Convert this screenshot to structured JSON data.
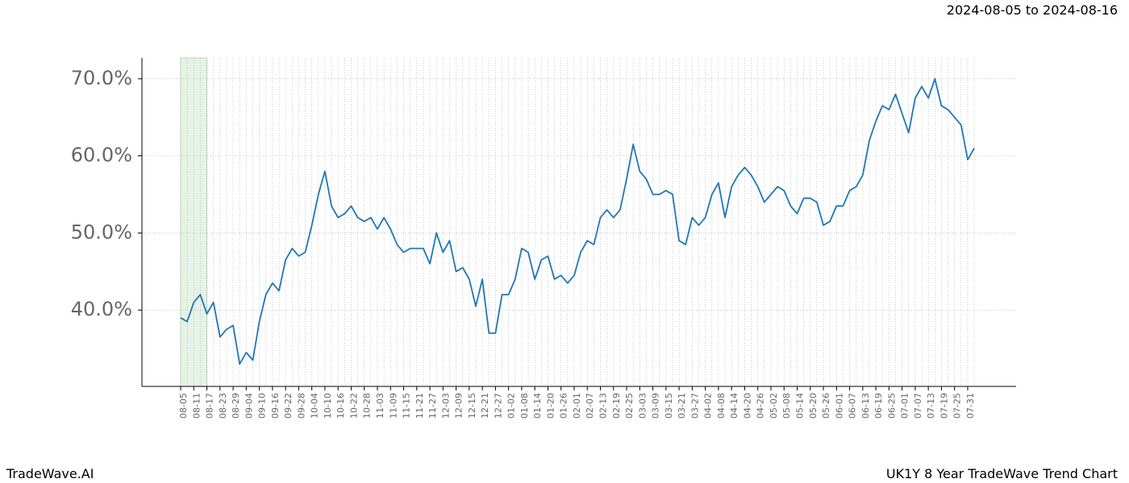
{
  "chart_data": {
    "type": "line",
    "title": "UK1Y 8 Year TradeWave Trend Chart",
    "subtitle": "2024-08-05 to 2024-08-16",
    "brand": "TradeWave.AI",
    "categories": [
      "08-05",
      null,
      "08-11",
      null,
      "08-17",
      null,
      "08-23",
      null,
      "08-29",
      null,
      "09-04",
      null,
      "09-10",
      null,
      "09-16",
      null,
      "09-22",
      null,
      "09-28",
      null,
      "10-04",
      null,
      "10-10",
      null,
      "10-16",
      null,
      "10-22",
      null,
      "10-28",
      null,
      "11-03",
      null,
      "11-09",
      null,
      "11-15",
      null,
      "11-21",
      null,
      "11-27",
      null,
      "12-03",
      null,
      "12-09",
      null,
      "12-15",
      null,
      "12-21",
      null,
      "12-27",
      null,
      "01-02",
      null,
      "01-08",
      null,
      "01-14",
      null,
      "01-20",
      null,
      "01-26",
      null,
      "02-01",
      null,
      "02-07",
      null,
      "02-13",
      null,
      "02-19",
      null,
      "02-25",
      null,
      "03-03",
      null,
      "03-09",
      null,
      "03-15",
      null,
      "03-21",
      null,
      "03-27",
      null,
      "04-02",
      null,
      "04-08",
      null,
      "04-14",
      null,
      "04-20",
      null,
      "04-26",
      null,
      "05-02",
      null,
      "05-08",
      null,
      "05-14",
      null,
      "05-20",
      null,
      "05-26",
      null,
      "06-01",
      null,
      "06-07",
      null,
      "06-13",
      null,
      "06-19",
      null,
      "06-25",
      null,
      "07-01",
      null,
      "07-07",
      null,
      "07-13",
      null,
      "07-19",
      null,
      "07-25",
      null,
      "07-31",
      null
    ],
    "series": [
      {
        "color": "#1f77b4",
        "values": [
          39.0,
          38.5,
          41.0,
          42.0,
          39.5,
          41.0,
          36.5,
          37.5,
          38.0,
          33.0,
          34.5,
          33.5,
          38.5,
          42.0,
          43.5,
          42.5,
          46.5,
          48.0,
          47.0,
          47.5,
          51.0,
          55.0,
          58.0,
          53.5,
          52.0,
          52.5,
          53.5,
          52.0,
          51.5,
          52.0,
          50.5,
          52.0,
          50.5,
          48.5,
          47.5,
          48.0,
          48.0,
          48.0,
          46.0,
          50.0,
          47.5,
          49.0,
          45.0,
          45.5,
          44.0,
          40.5,
          44.0,
          37.0,
          37.0,
          42.0,
          42.0,
          44.0,
          48.0,
          47.5,
          44.0,
          46.5,
          47.0,
          44.0,
          44.5,
          43.5,
          44.5,
          47.5,
          49.0,
          48.5,
          52.0,
          53.0,
          52.0,
          53.0,
          57.0,
          61.5,
          58.0,
          57.0,
          55.0,
          55.0,
          55.5,
          55.0,
          49.0,
          48.5,
          52.0,
          51.0,
          52.0,
          55.0,
          56.5,
          52.0,
          56.0,
          57.5,
          58.5,
          57.5,
          56.0,
          54.0,
          55.0,
          56.0,
          55.5,
          53.5,
          52.5,
          54.5,
          54.5,
          54.0,
          51.0,
          51.5,
          53.5,
          53.5,
          55.5,
          56.0,
          57.5,
          62.0,
          64.5,
          66.5,
          66.0,
          68.0,
          65.5,
          63.0,
          67.5,
          69.0,
          67.5,
          70.0,
          66.5,
          66.0,
          65.0,
          64.0,
          59.5,
          61.0
        ]
      }
    ],
    "ylim": [
      30.1,
      72.7
    ],
    "yticks": [
      {
        "value": 40,
        "label": "40.0%"
      },
      {
        "value": 50,
        "label": "50.0%"
      },
      {
        "value": 60,
        "label": "60.0%"
      },
      {
        "value": 70,
        "label": "70.0%"
      }
    ],
    "grid": true
  }
}
